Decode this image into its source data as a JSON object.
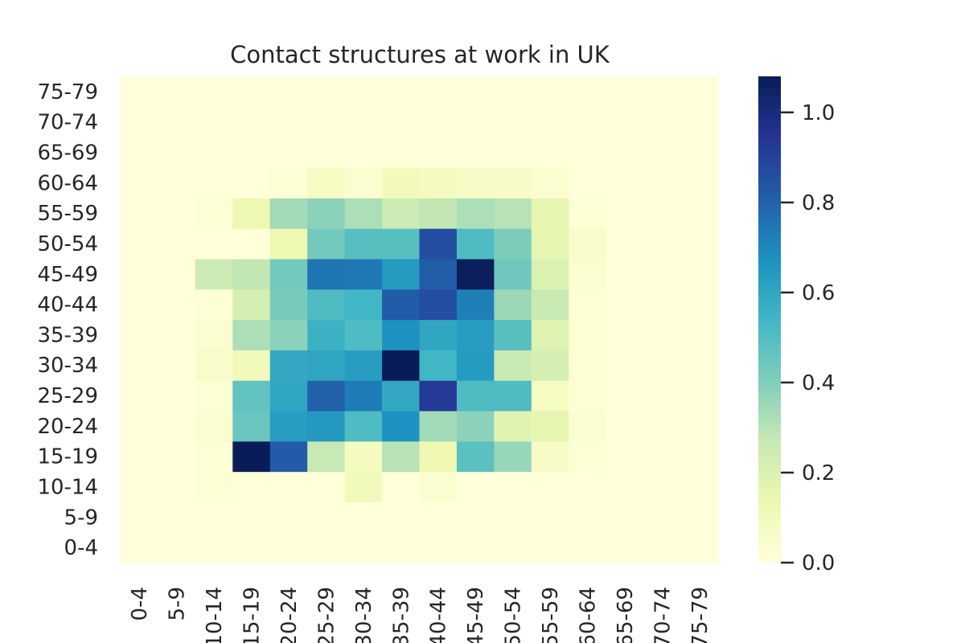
{
  "chart_data": {
    "type": "heatmap",
    "title": "Contact structures at work in UK",
    "xlabel": "",
    "ylabel": "",
    "x_categories": [
      "0-4",
      "5-9",
      "10-14",
      "15-19",
      "20-24",
      "25-29",
      "30-34",
      "35-39",
      "40-44",
      "45-49",
      "50-54",
      "55-59",
      "60-64",
      "65-69",
      "70-74",
      "75-79"
    ],
    "y_categories": [
      "0-4",
      "5-9",
      "10-14",
      "15-19",
      "20-24",
      "25-29",
      "30-34",
      "35-39",
      "40-44",
      "45-49",
      "50-54",
      "55-59",
      "60-64",
      "65-69",
      "70-74",
      "75-79"
    ],
    "values": [
      [
        0,
        0,
        0,
        0,
        0,
        0,
        0,
        0,
        0,
        0,
        0,
        0,
        0,
        0,
        0,
        0
      ],
      [
        0,
        0,
        0,
        0,
        0,
        0,
        0,
        0,
        0,
        0,
        0,
        0,
        0,
        0,
        0,
        0
      ],
      [
        0,
        0,
        0.02,
        0,
        0,
        0,
        0.1,
        0,
        0.03,
        0,
        0,
        0,
        0,
        0,
        0,
        0
      ],
      [
        0,
        0,
        0.02,
        1.08,
        0.82,
        0.27,
        0.08,
        0.3,
        0.13,
        0.48,
        0.36,
        0.06,
        0.02,
        0,
        0,
        0
      ],
      [
        0,
        0,
        0.03,
        0.45,
        0.63,
        0.65,
        0.51,
        0.67,
        0.34,
        0.38,
        0.18,
        0.16,
        0.03,
        0,
        0,
        0
      ],
      [
        0,
        0,
        0.02,
        0.47,
        0.6,
        0.8,
        0.73,
        0.59,
        0.93,
        0.51,
        0.51,
        0.07,
        0.02,
        0,
        0,
        0
      ],
      [
        0,
        0,
        0.05,
        0.1,
        0.59,
        0.6,
        0.63,
        1.08,
        0.54,
        0.64,
        0.26,
        0.22,
        0.02,
        0,
        0,
        0
      ],
      [
        0,
        0,
        0.03,
        0.32,
        0.38,
        0.56,
        0.51,
        0.67,
        0.6,
        0.63,
        0.49,
        0.19,
        0.02,
        0,
        0,
        0
      ],
      [
        0,
        0,
        0.02,
        0.22,
        0.42,
        0.51,
        0.54,
        0.82,
        0.86,
        0.72,
        0.35,
        0.26,
        0.02,
        0,
        0,
        0
      ],
      [
        0,
        0,
        0.25,
        0.28,
        0.43,
        0.75,
        0.74,
        0.64,
        0.81,
        1.07,
        0.44,
        0.2,
        0.03,
        0,
        0,
        0
      ],
      [
        0,
        0,
        0,
        0,
        0.13,
        0.43,
        0.49,
        0.49,
        0.86,
        0.51,
        0.41,
        0.16,
        0.05,
        0,
        0,
        0
      ],
      [
        0,
        0,
        0.02,
        0.13,
        0.34,
        0.38,
        0.32,
        0.25,
        0.28,
        0.32,
        0.3,
        0.16,
        0.02,
        0,
        0,
        0
      ],
      [
        0,
        0,
        0,
        0,
        0.02,
        0.07,
        0.03,
        0.1,
        0.08,
        0.06,
        0.06,
        0.03,
        0,
        0,
        0,
        0
      ],
      [
        0,
        0,
        0,
        0,
        0,
        0,
        0,
        0,
        0,
        0,
        0,
        0,
        0,
        0,
        0,
        0
      ],
      [
        0,
        0,
        0,
        0,
        0,
        0,
        0,
        0,
        0,
        0,
        0,
        0,
        0,
        0,
        0,
        0
      ],
      [
        0,
        0,
        0,
        0,
        0,
        0,
        0,
        0,
        0,
        0,
        0,
        0,
        0,
        0,
        0,
        0
      ]
    ],
    "vmin": 0,
    "vmax": 1.08,
    "colormap": "YlGnBu",
    "colorbar_ticks": [
      "0.0",
      "0.2",
      "0.4",
      "0.6",
      "0.8",
      "1.0"
    ],
    "grid": false
  }
}
